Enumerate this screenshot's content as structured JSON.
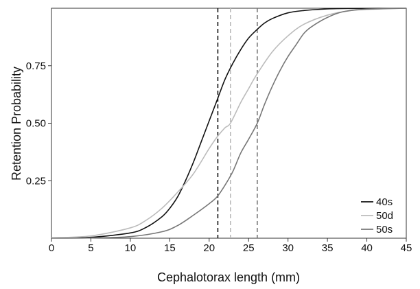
{
  "chart_data": {
    "type": "line",
    "title": "",
    "xlabel": "Cephalotorax length (mm)",
    "ylabel": "Retention Probability",
    "xlim": [
      0,
      45
    ],
    "ylim": [
      0,
      1
    ],
    "x_ticks": [
      0,
      5,
      10,
      15,
      20,
      25,
      30,
      35,
      40,
      45
    ],
    "x_tick_labels": [
      "0",
      "5",
      "10",
      "15",
      "20",
      "25",
      "30",
      "35",
      "40",
      "45"
    ],
    "y_ticks": [
      0.25,
      0.5,
      0.75
    ],
    "y_tick_labels": [
      "0.25",
      "0.50",
      "0.75"
    ],
    "grid": false,
    "legend_position": "bottom-right",
    "series": [
      {
        "name": "40s",
        "color": "#111111",
        "x": [
          0,
          5,
          10,
          12,
          14,
          15,
          16,
          17,
          18,
          19,
          20,
          21,
          22,
          23,
          24,
          25,
          26,
          27,
          28,
          30,
          32,
          35,
          38,
          45
        ],
        "values": [
          0.001,
          0.004,
          0.023,
          0.047,
          0.093,
          0.13,
          0.18,
          0.25,
          0.33,
          0.42,
          0.51,
          0.6,
          0.69,
          0.76,
          0.82,
          0.87,
          0.905,
          0.935,
          0.955,
          0.98,
          0.99,
          0.997,
          0.999,
          1.0
        ]
      },
      {
        "name": "50d",
        "color": "#bbbbbb",
        "x": [
          0,
          5,
          10,
          12,
          14,
          16,
          18,
          20,
          21,
          22,
          22.7,
          24,
          25,
          26,
          28,
          30,
          32,
          35,
          38,
          40,
          45
        ],
        "values": [
          0.002,
          0.01,
          0.045,
          0.078,
          0.13,
          0.2,
          0.28,
          0.39,
          0.44,
          0.48,
          0.5,
          0.59,
          0.65,
          0.71,
          0.81,
          0.88,
          0.93,
          0.97,
          0.99,
          0.995,
          1.0
        ]
      },
      {
        "name": "50s",
        "color": "#777777",
        "x": [
          0,
          5,
          10,
          14,
          16,
          18,
          20,
          21,
          22,
          23,
          24,
          25,
          26.1,
          27,
          28,
          29,
          30,
          31,
          32,
          33,
          35,
          37,
          40,
          45
        ],
        "values": [
          0.0,
          0.001,
          0.007,
          0.028,
          0.055,
          0.1,
          0.15,
          0.18,
          0.23,
          0.29,
          0.37,
          0.43,
          0.5,
          0.58,
          0.66,
          0.73,
          0.79,
          0.84,
          0.89,
          0.92,
          0.96,
          0.985,
          0.996,
          1.0
        ]
      }
    ],
    "vertical_lines": [
      {
        "x": 21.1,
        "color": "#111111",
        "style": "dashed",
        "series": "40s"
      },
      {
        "x": 22.7,
        "color": "#bbbbbb",
        "style": "dashed",
        "series": "50d"
      },
      {
        "x": 26.1,
        "color": "#777777",
        "style": "dashed",
        "series": "50s"
      }
    ]
  }
}
